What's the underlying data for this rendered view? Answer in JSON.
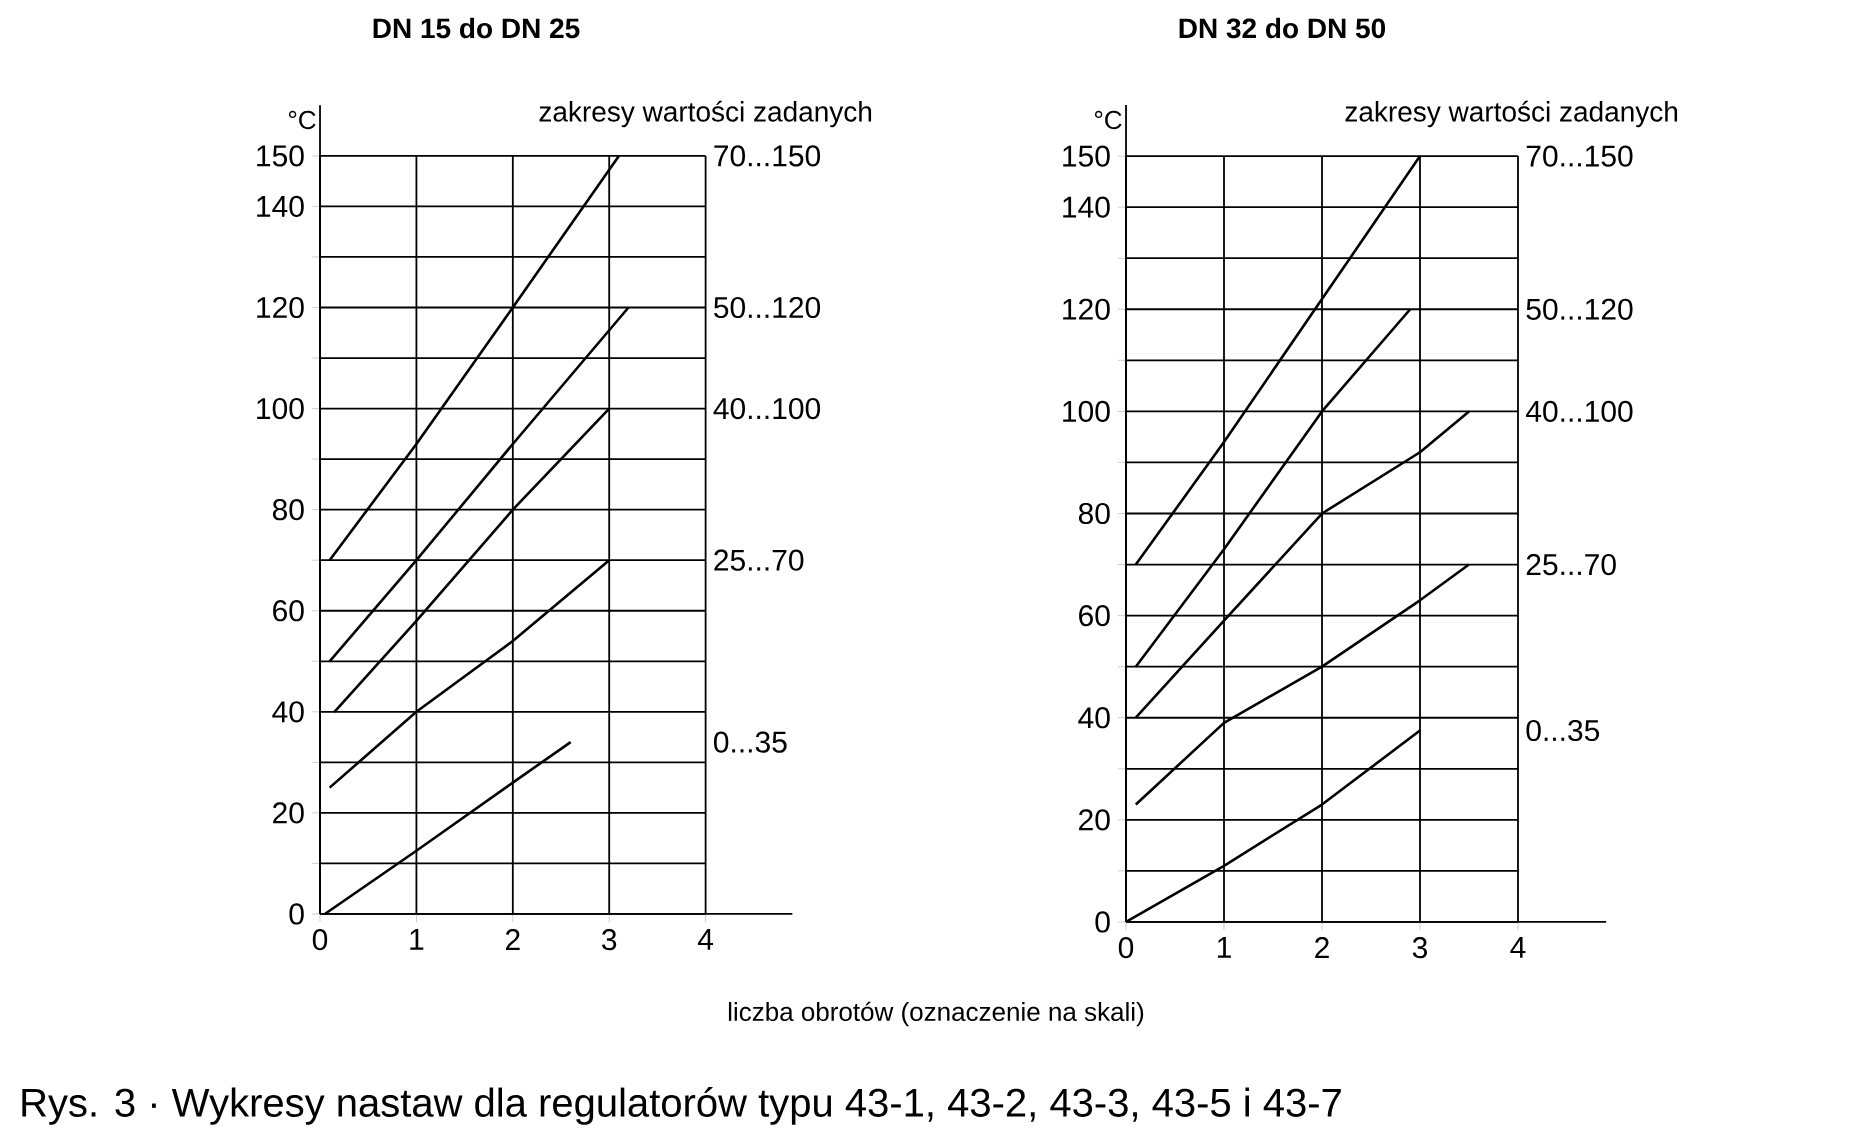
{
  "chart_data": [
    {
      "type": "line",
      "title": "DN 15 do DN 25",
      "ylabel": "°C",
      "xlabel": "liczba obrotów (oznaczenie na skali)",
      "annotations": [
        "zakresy wartości zadanych",
        "Rys. 3 · Wykresy nastaw dla regulatorów typu 43-1, 43-2, 43-3, 43-5 i 43-7"
      ],
      "xlim": [
        0,
        4.9
      ],
      "ylim": [
        0,
        160
      ],
      "xticks": [
        0,
        1,
        2,
        3,
        4
      ],
      "yticks": [
        0,
        {
          "value": 10,
          "label": null
        },
        20,
        {
          "value": 30,
          "label": null
        },
        40,
        {
          "value": 50,
          "label": null
        },
        60,
        {
          "value": 70,
          "label": null
        },
        80,
        {
          "value": 90,
          "label": null
        },
        100,
        {
          "value": 110,
          "label": null
        },
        120,
        {
          "value": 130,
          "label": null
        },
        140,
        150
      ],
      "grid": true,
      "series": [
        {
          "name": "70...150",
          "color": "#000000",
          "x": [
            0.1,
            1,
            2,
            3.1
          ],
          "values": [
            70,
            93,
            120,
            150
          ]
        },
        {
          "name": "50...120",
          "color": "#000000",
          "x": [
            0.1,
            1,
            2,
            3.2
          ],
          "values": [
            50,
            70,
            93,
            120
          ]
        },
        {
          "name": "40...100",
          "color": "#000000",
          "x": [
            0.15,
            1,
            2,
            3
          ],
          "values": [
            40,
            58,
            80,
            100
          ]
        },
        {
          "name": "25...70",
          "color": "#000000",
          "x": [
            0.1,
            1,
            2,
            3
          ],
          "values": [
            25,
            40,
            54,
            70
          ]
        },
        {
          "name": "0...35",
          "color": "#000000",
          "x": [
            0.05,
            1,
            2,
            2.6
          ],
          "values": [
            0,
            12.5,
            26,
            34
          ]
        }
      ]
    },
    {
      "type": "line",
      "title": "DN 32 do DN 50",
      "ylabel": "°C",
      "annotations": [
        "zakresy wartości zadanych"
      ],
      "xlim": [
        0,
        4.9
      ],
      "ylim": [
        0,
        160
      ],
      "xticks": [
        0,
        1,
        2,
        3,
        4
      ],
      "yticks": [
        0,
        {
          "value": 10,
          "label": null
        },
        20,
        {
          "value": 30,
          "label": null
        },
        40,
        {
          "value": 50,
          "label": null
        },
        60,
        {
          "value": 70,
          "label": null
        },
        80,
        {
          "value": 90,
          "label": null
        },
        100,
        {
          "value": 110,
          "label": null
        },
        120,
        {
          "value": 130,
          "label": null
        },
        140,
        150
      ],
      "grid": true,
      "series": [
        {
          "name": "70...150",
          "color": "#000000",
          "x": [
            0.1,
            1,
            2,
            3
          ],
          "values": [
            70,
            94,
            122,
            150
          ]
        },
        {
          "name": "50...120",
          "color": "#000000",
          "x": [
            0.1,
            1,
            2,
            2.9
          ],
          "values": [
            50,
            73,
            100,
            120
          ]
        },
        {
          "name": "40...100",
          "color": "#000000",
          "x": [
            0.1,
            1,
            2,
            3,
            3.5
          ],
          "values": [
            40,
            59,
            80,
            92,
            100
          ]
        },
        {
          "name": "25...70",
          "color": "#000000",
          "x": [
            0.1,
            1,
            2,
            3,
            3.5
          ],
          "values": [
            23,
            39,
            50,
            63,
            70
          ]
        },
        {
          "name": "0...35",
          "color": "#000000",
          "x": [
            0,
            1,
            2,
            3
          ],
          "values": [
            0,
            11,
            23,
            37.5
          ]
        }
      ]
    }
  ]
}
